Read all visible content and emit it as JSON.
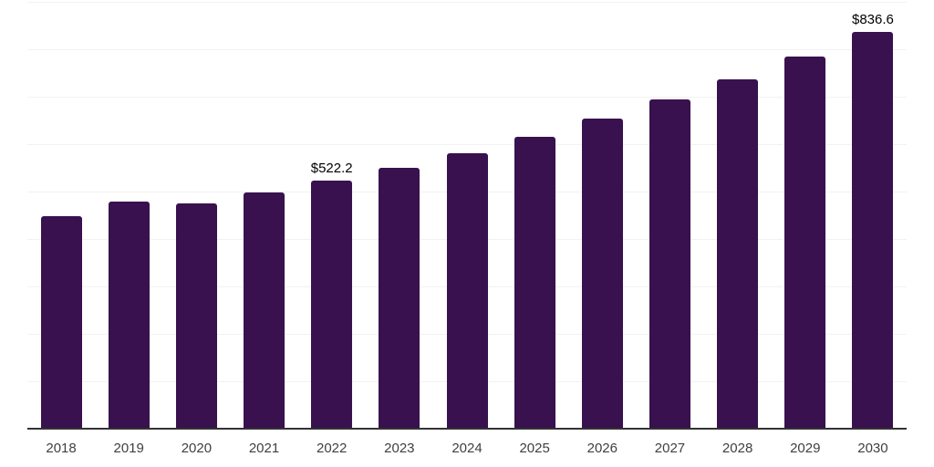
{
  "chart_data": {
    "type": "bar",
    "title": "",
    "xlabel": "",
    "ylabel": "",
    "categories": [
      "2018",
      "2019",
      "2020",
      "2021",
      "2022",
      "2023",
      "2024",
      "2025",
      "2026",
      "2027",
      "2028",
      "2029",
      "2030"
    ],
    "values": [
      448.6,
      479.3,
      474.3,
      497.3,
      522.2,
      550.9,
      580.9,
      616.1,
      653.2,
      693.4,
      737.5,
      785.4,
      836.6
    ],
    "data_labels": {
      "2022": "$522.2",
      "2030": "$836.6"
    },
    "value_prefix": "$",
    "ylim": [
      0,
      900
    ],
    "grid_step": 100,
    "grid": "horizontal-only",
    "legend": "none",
    "y_axis_tick_labels": "none",
    "colors": {
      "bar": "#38114e",
      "axis": "#333333",
      "gridline": "#f2f2f2",
      "value_label": "#000000",
      "tick_label": "#404040",
      "background": "#ffffff"
    }
  }
}
